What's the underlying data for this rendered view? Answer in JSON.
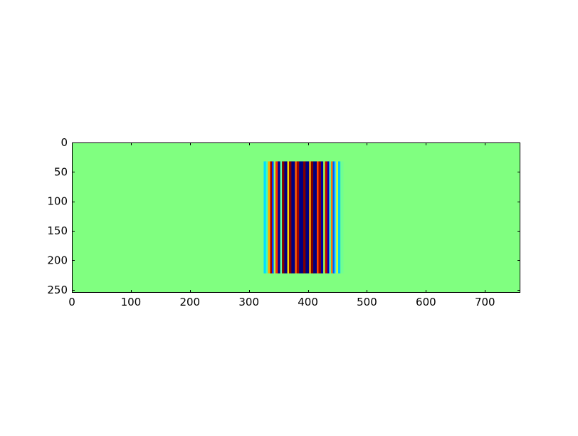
{
  "chart_data": {
    "type": "heatmap",
    "title": "",
    "xlabel": "",
    "ylabel": "",
    "xlim": [
      0,
      760
    ],
    "ylim": [
      255,
      0
    ],
    "x_ticks": [
      0,
      100,
      200,
      300,
      400,
      500,
      600,
      700
    ],
    "y_ticks": [
      0,
      50,
      100,
      150,
      200,
      250
    ],
    "x_tick_labels": [
      "0",
      "100",
      "200",
      "300",
      "400",
      "500",
      "600",
      "700"
    ],
    "y_tick_labels": [
      "0",
      "50",
      "100",
      "150",
      "200",
      "250"
    ],
    "colormap": "jet",
    "background_color": "#80ff80",
    "grid": false,
    "pattern": {
      "description_type": "vertical-stripes",
      "x_range": [
        325,
        460
      ],
      "y_range": [
        32,
        222
      ],
      "stripes": [
        {
          "x": [
            325,
            329
          ],
          "color": "#00e0ff"
        },
        {
          "x": [
            329,
            332
          ],
          "color": "#40ffb8"
        },
        {
          "x": [
            332,
            336
          ],
          "color": "#ffb000"
        },
        {
          "x": [
            336,
            339
          ],
          "color": "#a00000"
        },
        {
          "x": [
            339,
            342
          ],
          "color": "#0040ff"
        },
        {
          "x": [
            342,
            345
          ],
          "color": "#90ff60"
        },
        {
          "x": [
            345,
            349
          ],
          "color": "#ff3000"
        },
        {
          "x": [
            349,
            353
          ],
          "color": "#000090"
        },
        {
          "x": [
            353,
            356
          ],
          "color": "#60ffa0"
        },
        {
          "x": [
            356,
            360
          ],
          "color": "#800000"
        },
        {
          "x": [
            360,
            365
          ],
          "color": "#000080"
        },
        {
          "x": [
            365,
            368
          ],
          "color": "#ffd000"
        },
        {
          "x": [
            368,
            372
          ],
          "color": "#800000"
        },
        {
          "x": [
            372,
            378
          ],
          "color": "#000080"
        },
        {
          "x": [
            378,
            381
          ],
          "color": "#ff6000"
        },
        {
          "x": [
            381,
            385
          ],
          "color": "#a00000"
        },
        {
          "x": [
            385,
            392
          ],
          "color": "#000080"
        },
        {
          "x": [
            392,
            396
          ],
          "color": "#800000"
        },
        {
          "x": [
            396,
            402
          ],
          "color": "#000080"
        },
        {
          "x": [
            402,
            405
          ],
          "color": "#ffb000"
        },
        {
          "x": [
            405,
            409
          ],
          "color": "#800000"
        },
        {
          "x": [
            409,
            415
          ],
          "color": "#000080"
        },
        {
          "x": [
            415,
            418
          ],
          "color": "#ff4000"
        },
        {
          "x": [
            418,
            422
          ],
          "color": "#900000"
        },
        {
          "x": [
            422,
            426
          ],
          "color": "#0000a0"
        },
        {
          "x": [
            426,
            429
          ],
          "color": "#a0ff50"
        },
        {
          "x": [
            429,
            433
          ],
          "color": "#c00000"
        },
        {
          "x": [
            433,
            436
          ],
          "color": "#0000c0"
        },
        {
          "x": [
            436,
            439
          ],
          "color": "#40ffb0"
        },
        {
          "x": [
            439,
            442
          ],
          "color": "#ff8000"
        },
        {
          "x": [
            442,
            445
          ],
          "color": "#0060ff"
        },
        {
          "x": [
            445,
            448
          ],
          "color": "#30e0ff"
        },
        {
          "x": [
            448,
            451
          ],
          "color": "#e0ff20"
        },
        {
          "x": [
            451,
            455
          ],
          "color": "#00c8ff"
        },
        {
          "x": [
            455,
            460
          ],
          "color": "#70ff90"
        }
      ]
    }
  }
}
